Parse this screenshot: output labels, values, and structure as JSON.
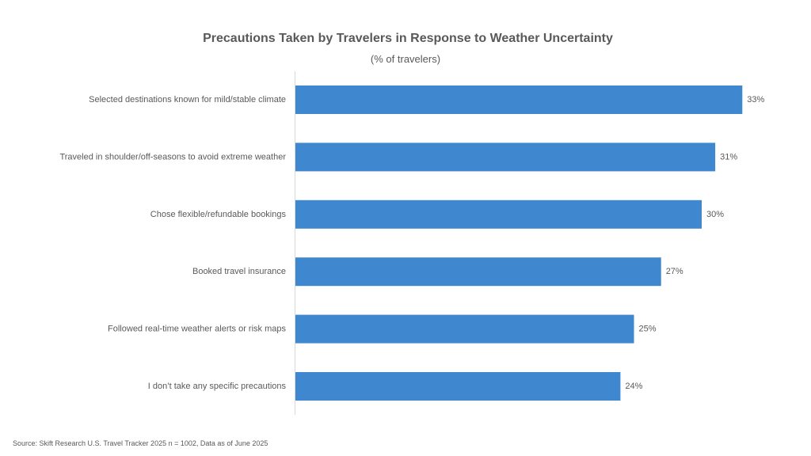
{
  "chart_data": {
    "type": "bar",
    "orientation": "horizontal",
    "title": "Precautions Taken by Travelers in Response to Weather Uncertainty",
    "subtitle": "(% of travelers)",
    "categories": [
      "Selected destinations known for mild/stable climate",
      "Traveled in shoulder/off-seasons to avoid extreme weather",
      "Chose flexible/refundable bookings",
      "Booked travel insurance",
      "Followed real-time weather alerts or risk maps",
      "I don’t take any specific precautions"
    ],
    "values": [
      33,
      31,
      30,
      27,
      25,
      24
    ],
    "value_labels": [
      "33%",
      "31%",
      "30%",
      "27%",
      "25%",
      "24%"
    ],
    "unit": "%",
    "xlim": [
      0,
      34
    ],
    "grid": false,
    "legend": "none",
    "bar_color": "#3F88CF",
    "axis_color": "#D9D9D9",
    "text_color": "#595959"
  },
  "source_note": "Source: Skift Research U.S. Travel Tracker 2025 n = 1002, Data as of June 2025"
}
